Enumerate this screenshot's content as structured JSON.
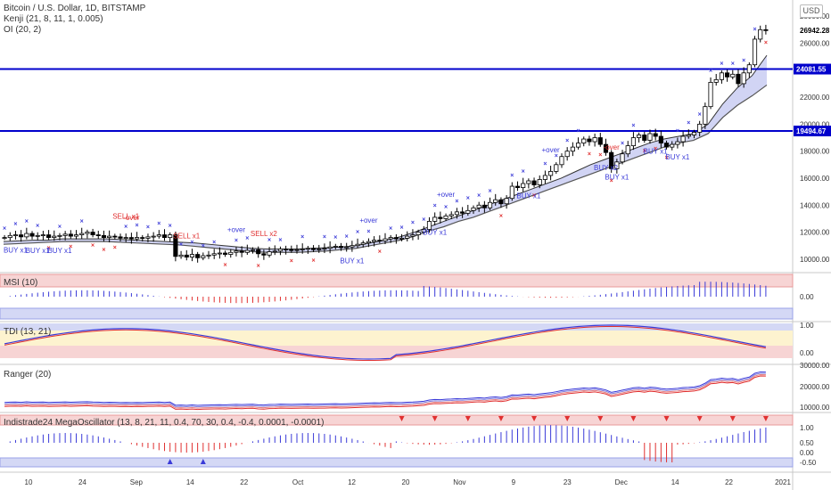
{
  "header": {
    "title": "Bitcoin / U.S. Dollar, 1D, BITSTAMP",
    "ind1": "Kenji (21, 8, 11, 1, 0.005)",
    "ind2": "OI (20, 2)",
    "currency": "USD"
  },
  "colors": {
    "up": "#ffffff",
    "down": "#000000",
    "hline": "#0000cc",
    "marker_blue": "#3a3ad8",
    "marker_red": "#e03030",
    "band_fill": "#c9ccf2",
    "band_line": "#555555"
  },
  "price_axis": {
    "ticks": [
      "28000.00",
      "26000.00",
      "22000.00",
      "20000.00",
      "18000.00",
      "16000.00",
      "14000.00",
      "12000.00",
      "10000.00"
    ],
    "last_price": "26942.28",
    "hlines": [
      "24081.55",
      "19494.67"
    ]
  },
  "time_axis": {
    "labels": [
      "10",
      "24",
      "Sep",
      "14",
      "22",
      "Oct",
      "12",
      "20",
      "Nov",
      "9",
      "23",
      "Dec",
      "14",
      "22",
      "2021"
    ]
  },
  "signal_labels": [
    {
      "text": "BUY x1",
      "color": "blue"
    },
    {
      "text": "BUY x1",
      "color": "blue"
    },
    {
      "text": "BUY x1",
      "color": "blue"
    },
    {
      "text": "SELL x1",
      "color": "red"
    },
    {
      "text": "-over",
      "color": "red"
    },
    {
      "text": "SELL x1",
      "color": "red"
    },
    {
      "text": "+over",
      "color": "blue"
    },
    {
      "text": "SELL x2",
      "color": "red"
    },
    {
      "text": "BUY x1",
      "color": "blue"
    },
    {
      "text": "+over",
      "color": "blue"
    },
    {
      "text": "BUY x1",
      "color": "blue"
    },
    {
      "text": "+over",
      "color": "blue"
    },
    {
      "text": "BUY x1",
      "color": "blue"
    },
    {
      "text": "BUY x2",
      "color": "blue"
    },
    {
      "text": "BUY x1",
      "color": "blue"
    },
    {
      "text": "-over",
      "color": "red"
    },
    {
      "text": "BUY x1",
      "color": "blue"
    },
    {
      "text": "BUY x1",
      "color": "blue"
    },
    {
      "text": "+over",
      "color": "blue"
    }
  ],
  "panels": {
    "msi": {
      "label": "MSI (10)",
      "ticks": [
        "0.00"
      ]
    },
    "tdi": {
      "label": "TDI (13, 21)",
      "ticks": [
        "1.00",
        "0.00"
      ]
    },
    "ranger": {
      "label": "Ranger (20)",
      "ticks": [
        "30000.00",
        "20000.00",
        "10000.00"
      ]
    },
    "mega": {
      "label": "Indistrade24 MegaOscillator (13, 8, 21, 11, 0.4, 70, 30, 0.4, -0.4, 0.0001, -0.0001)",
      "ticks": [
        "1.00",
        "0.50",
        "0.00",
        "-0.50"
      ]
    }
  },
  "chart_data": {
    "type": "candlestick",
    "title": "Bitcoin / U.S. Dollar, 1D, BITSTAMP",
    "y_unit": "USD",
    "ylim": [
      9000,
      29200
    ],
    "x_range": [
      "Aug 2020",
      "Jan 2021"
    ],
    "close_approx": [
      11600,
      11750,
      11800,
      11650,
      11900,
      11700,
      11750,
      11800,
      11600,
      11700,
      11750,
      11850,
      11700,
      11800,
      11900,
      12000,
      11800,
      11750,
      11600,
      11700,
      11650,
      11550,
      11600,
      11500,
      11600,
      11550,
      11650,
      11700,
      11800,
      11600,
      11800,
      10200,
      10300,
      10150,
      10350,
      10100,
      10250,
      10300,
      10400,
      10450,
      10350,
      10500,
      10600,
      10500,
      10650,
      10700,
      10400,
      10300,
      10550,
      10600,
      10750,
      10700,
      10650,
      10700,
      10750,
      10800,
      10700,
      10750,
      10800,
      10900,
      10950,
      10850,
      10900,
      11000,
      11100,
      11200,
      11300,
      11400,
      11350,
      11500,
      11600,
      11500,
      11550,
      11700,
      11800,
      12000,
      12200,
      12800,
      13100,
      13000,
      13200,
      13300,
      13500,
      13400,
      13600,
      13800,
      14000,
      13800,
      14200,
      14400,
      14100,
      14500,
      15400,
      15300,
      15600,
      15800,
      15500,
      15900,
      16200,
      16500,
      17000,
      17600,
      18000,
      18300,
      18600,
      18900,
      18700,
      19000,
      18500,
      17900,
      16700,
      17200,
      17800,
      18400,
      19000,
      19200,
      18800,
      19300,
      19100,
      18600,
      18300,
      18500,
      18700,
      19100,
      19200,
      19400,
      20000,
      21300,
      23100,
      23300,
      23800,
      23500,
      23700,
      23000,
      23800,
      24400,
      26300,
      27000,
      26942
    ],
    "ema_upper_approx": [
      11300,
      11350,
      11400,
      11400,
      11500,
      11500,
      11500,
      11500,
      11450,
      11400,
      11350,
      11300,
      11250,
      11200,
      11100,
      11000,
      10900,
      10800,
      10750,
      10750,
      10750,
      10800,
      10850,
      10900,
      11000,
      11200,
      11400,
      11650,
      12000,
      12400,
      12800,
      13200,
      13600,
      14000,
      14400,
      14800,
      15200,
      15600,
      16000,
      16500,
      17000,
      17400,
      17800,
      18200,
      18600,
      18900,
      19100,
      19300,
      20000,
      21500,
      22700,
      23600,
      25100
    ],
    "ema_lower_approx": [
      11100,
      11150,
      11200,
      11250,
      11300,
      11300,
      11300,
      11300,
      11250,
      11200,
      11150,
      11100,
      11050,
      10950,
      10850,
      10750,
      10650,
      10550,
      10500,
      10500,
      10500,
      10550,
      10600,
      10700,
      10800,
      11000,
      11200,
      11400,
      11700,
      12100,
      12400,
      12800,
      13100,
      13500,
      13900,
      14300,
      14700,
      15100,
      15500,
      15900,
      16300,
      16700,
      17100,
      17500,
      17900,
      18300,
      18600,
      18800,
      19300,
      20500,
      21400,
      22100,
      22900
    ]
  }
}
